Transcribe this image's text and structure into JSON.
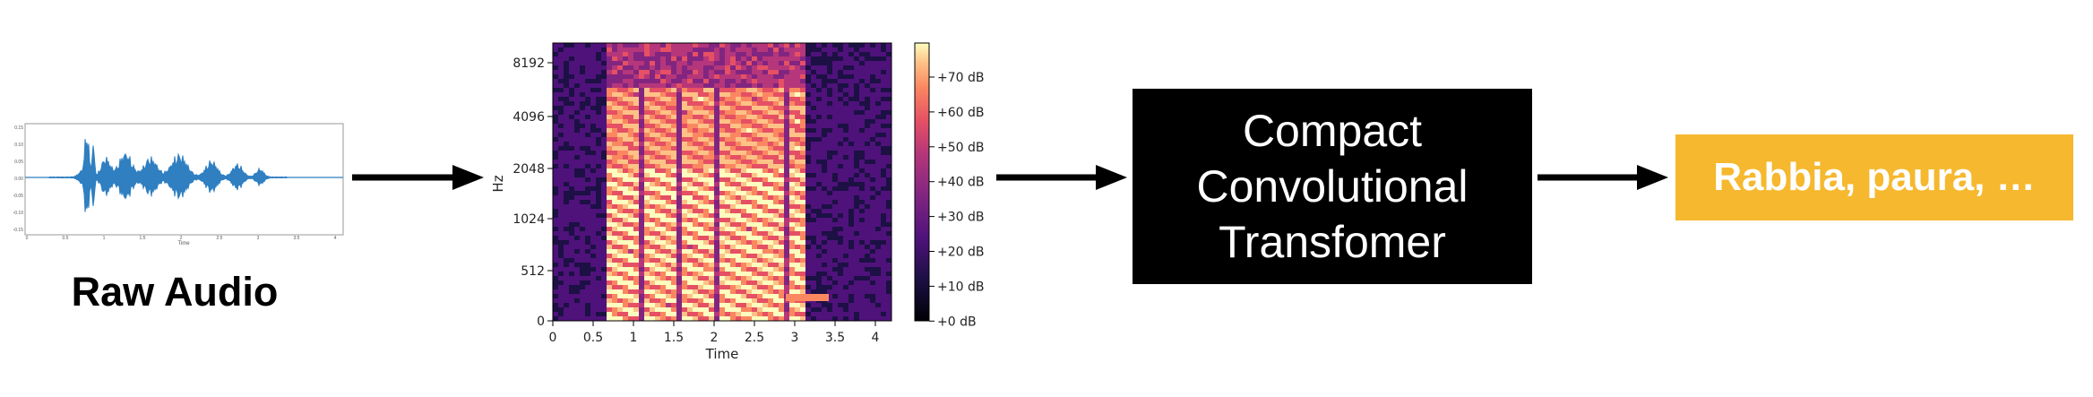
{
  "raw_audio": {
    "label": "Raw Audio",
    "y_ticks": [
      "0.15",
      "0.10",
      "0.05",
      "0.00",
      "-0.05",
      "-0.10",
      "-0.15"
    ],
    "x_ticks": [
      "0",
      "0.5",
      "1",
      "1.5",
      "2",
      "2.5",
      "3",
      "3.5",
      "4"
    ],
    "x_label": "Time"
  },
  "spectrogram": {
    "y_label": "Hz",
    "x_label": "Time",
    "y_ticks": [
      "8192",
      "4096",
      "2048",
      "1024",
      "512",
      "0"
    ],
    "x_ticks": [
      "0",
      "0.5",
      "1",
      "1.5",
      "2",
      "2.5",
      "3",
      "3.5",
      "4"
    ],
    "colorbar_ticks": [
      "+70 dB",
      "+60 dB",
      "+50 dB",
      "+40 dB",
      "+30 dB",
      "+20 dB",
      "+10 dB",
      "+0 dB"
    ]
  },
  "model": {
    "lines": [
      "Compact",
      "Convolutional",
      "Transfomer"
    ]
  },
  "output": {
    "text": "Rabbia, paura, …",
    "color": "#F5B82E"
  },
  "colors": {
    "waveform": "#2F7FC1",
    "arrow": "#000000"
  }
}
